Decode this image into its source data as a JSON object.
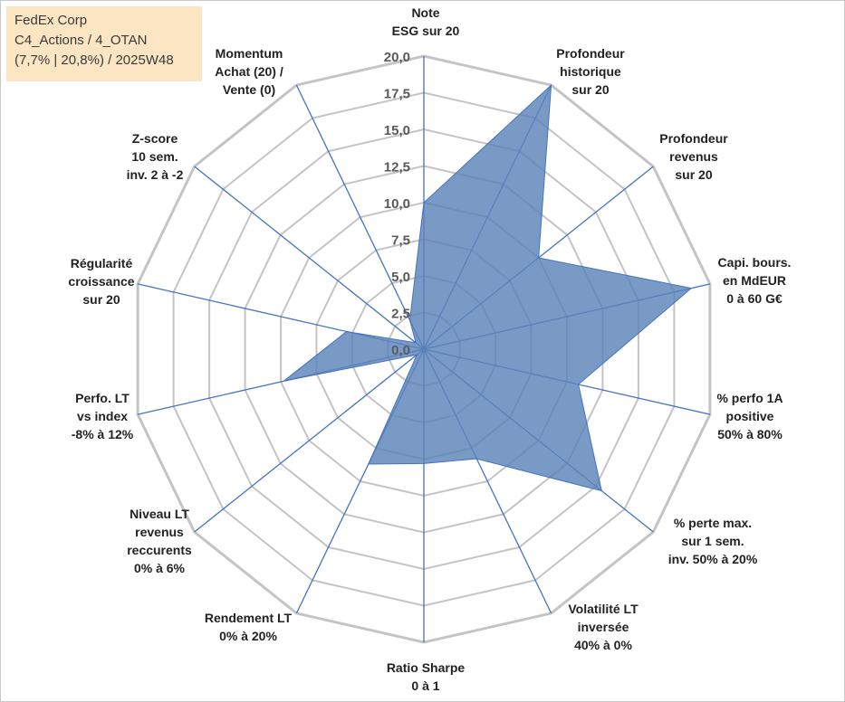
{
  "header": {
    "company": "FedEx Corp",
    "portfolio": "C4_Actions / 4_OTAN",
    "details": "(7,7% | 20,8%) / 2025W48"
  },
  "chart_data": {
    "type": "radar",
    "title": "",
    "rlim": [
      0,
      20
    ],
    "ticks": [
      "0,0",
      "2,5",
      "5,0",
      "7,5",
      "10,0",
      "12,5",
      "15,0",
      "17,5",
      "20,0"
    ],
    "grid": true,
    "colors": {
      "fill": "#5b84b8",
      "line": "#4472c4",
      "grid": "#c4c4c4"
    },
    "axes": [
      {
        "lines": [
          "Note",
          "ESG sur 20"
        ]
      },
      {
        "lines": [
          "Profondeur",
          "historique",
          "sur 20"
        ]
      },
      {
        "lines": [
          "Profondeur",
          "revenus",
          "sur 20"
        ]
      },
      {
        "lines": [
          "Capi. bours.",
          "en MdEUR",
          "0 à 60 G€"
        ]
      },
      {
        "lines": [
          "% perfo 1A",
          "positive",
          "50% à 80%"
        ]
      },
      {
        "lines": [
          "% perte max.",
          "sur 1 sem.",
          "inv. 50% à 20%"
        ]
      },
      {
        "lines": [
          "Volatilité LT",
          "inversée",
          "40% à 0%"
        ]
      },
      {
        "lines": [
          "Ratio Sharpe",
          "0 à 1"
        ]
      },
      {
        "lines": [
          "Rendement LT",
          "0% à 20%"
        ]
      },
      {
        "lines": [
          "Niveau LT",
          "revenus",
          "reccurents",
          "0% à 6%"
        ]
      },
      {
        "lines": [
          "Perfo. LT",
          "vs index",
          "-8% à 12%"
        ]
      },
      {
        "lines": [
          "Régularité",
          "croissance",
          "sur 20"
        ]
      },
      {
        "lines": [
          "Z-score",
          "10 sem.",
          "inv. 2 à -2"
        ]
      },
      {
        "lines": [
          "Momentum",
          "Achat (20) /",
          "Vente (0)"
        ]
      }
    ],
    "series": [
      {
        "values": [
          10.0,
          20.0,
          10.0,
          18.7,
          10.8,
          15.5,
          8.3,
          7.8,
          8.7,
          0.6,
          9.8,
          5.4,
          0.7,
          2.2
        ]
      }
    ]
  }
}
